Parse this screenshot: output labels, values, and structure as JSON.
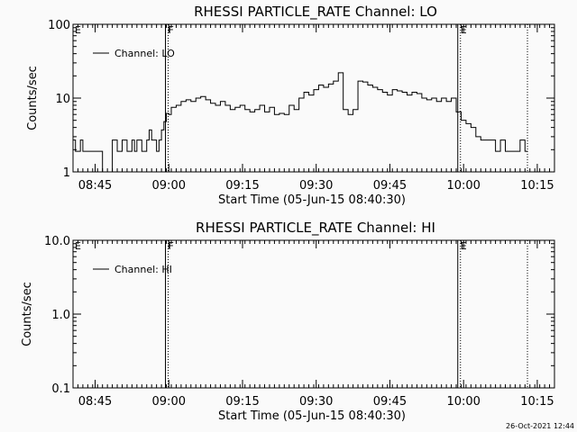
{
  "footer_timestamp": "26-Oct-2021 12:44",
  "chart_data": [
    {
      "type": "line",
      "title": "RHESSI PARTICLE_RATE Channel: LO",
      "xlabel": "Start Time (05-Jun-15 08:40:30)",
      "ylabel": "Counts/sec",
      "yscale": "log",
      "ylim": [
        1,
        100
      ],
      "ytick_values": [
        1,
        10,
        100
      ],
      "ytick_labels": [
        "1",
        "10",
        "100"
      ],
      "xlim_minutes": [
        0,
        98
      ],
      "xtick_values_minutes": [
        4.5,
        19.5,
        34.5,
        49.5,
        64.5,
        79.5,
        94.5
      ],
      "xtick_labels": [
        "08:45",
        "09:00",
        "09:15",
        "09:30",
        "09:45",
        "10:00",
        "10:15"
      ],
      "legend": {
        "position": "top-left",
        "entries": [
          "Channel: LO"
        ]
      },
      "event_markers": [
        {
          "label": "E",
          "minute": 0,
          "style": "none"
        },
        {
          "label": "F",
          "minute": 19,
          "style": "solid+dotted"
        },
        {
          "label": "E",
          "minute": 78.5,
          "style": "solid+dotted"
        },
        {
          "label": "",
          "minute": 92.5,
          "style": "dotted"
        }
      ],
      "series": [
        {
          "name": "Channel: LO",
          "x_minutes": [
            0,
            0.5,
            1.5,
            2,
            3,
            4,
            5,
            5.5,
            6,
            8,
            9,
            10,
            10.5,
            11,
            12,
            12.5,
            13,
            13.5,
            14,
            15,
            15.5,
            16,
            17,
            17.5,
            18,
            18.5,
            19,
            19.5,
            20,
            21,
            22,
            23,
            24,
            25,
            26,
            27,
            28,
            29,
            30,
            31,
            32,
            33,
            34,
            35,
            36,
            37,
            38,
            39,
            40,
            41,
            42,
            43,
            44,
            45,
            46,
            47,
            48,
            49,
            50,
            51,
            52,
            53,
            54,
            55,
            56,
            57,
            58,
            59,
            60,
            61,
            62,
            63,
            64,
            65,
            66,
            67,
            68,
            69,
            70,
            71,
            72,
            73,
            74,
            75,
            76,
            77,
            78,
            79,
            80,
            81,
            82,
            83,
            84,
            85,
            86,
            87,
            88,
            89,
            90,
            91,
            92,
            92.5
          ],
          "values": [
            2.7,
            1.9,
            2.7,
            1.9,
            1.9,
            1.9,
            1.9,
            1.9,
            1.0,
            2.7,
            1.9,
            2.7,
            2.7,
            1.9,
            2.7,
            1.9,
            2.7,
            2.7,
            1.9,
            2.7,
            3.7,
            2.7,
            1.9,
            2.7,
            3.7,
            4.8,
            6.2,
            6.0,
            7.5,
            8.0,
            9.0,
            9.5,
            9.0,
            10.0,
            10.5,
            9.5,
            8.5,
            8.0,
            9.0,
            8.0,
            7.0,
            7.5,
            8.0,
            7.0,
            6.5,
            7.0,
            8.0,
            6.5,
            7.5,
            6.0,
            6.2,
            6.0,
            8.0,
            7.0,
            10.0,
            12.0,
            11.0,
            13.0,
            15.0,
            14.0,
            15.5,
            17.0,
            22.0,
            7.0,
            6.0,
            7.0,
            17.0,
            16.5,
            15.0,
            14.0,
            13.0,
            12.0,
            11.0,
            13.0,
            12.5,
            12.0,
            11.0,
            12.0,
            11.5,
            10.0,
            9.5,
            10.0,
            9.0,
            10.0,
            9.0,
            10.0,
            6.5,
            5.0,
            4.5,
            4.0,
            3.0,
            2.7,
            2.7,
            2.7,
            1.9,
            2.7,
            1.9,
            1.9,
            1.9,
            2.7,
            1.9,
            1.9
          ]
        }
      ]
    },
    {
      "type": "line",
      "title": "RHESSI PARTICLE_RATE Channel: HI",
      "xlabel": "Start Time (05-Jun-15 08:40:30)",
      "ylabel": "Counts/sec",
      "yscale": "log",
      "ylim": [
        0.1,
        10
      ],
      "ytick_values": [
        0.1,
        1,
        10
      ],
      "ytick_labels": [
        "0.1",
        "1.0",
        "10.0"
      ],
      "xlim_minutes": [
        0,
        98
      ],
      "xtick_values_minutes": [
        4.5,
        19.5,
        34.5,
        49.5,
        64.5,
        79.5,
        94.5
      ],
      "xtick_labels": [
        "08:45",
        "09:00",
        "09:15",
        "09:30",
        "09:45",
        "10:00",
        "10:15"
      ],
      "legend": {
        "position": "top-left",
        "entries": [
          "Channel: HI"
        ]
      },
      "event_markers": [
        {
          "label": "E",
          "minute": 0,
          "style": "none"
        },
        {
          "label": "F",
          "minute": 19,
          "style": "solid+dotted"
        },
        {
          "label": "E",
          "minute": 78.5,
          "style": "solid+dotted"
        },
        {
          "label": "",
          "minute": 92.5,
          "style": "dotted"
        }
      ],
      "series": [
        {
          "name": "Channel: HI",
          "x_minutes": [],
          "values": []
        }
      ]
    }
  ]
}
